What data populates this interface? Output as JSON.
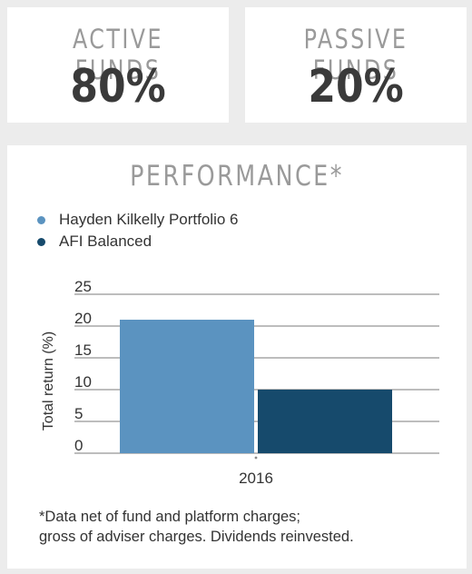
{
  "stats": {
    "active": {
      "label": "ACTIVE FUNDS",
      "value": "80%"
    },
    "passive": {
      "label": "PASSIVE FUNDS",
      "value": "20%"
    }
  },
  "performance": {
    "title": "PERFORMANCE*",
    "footnote_line1": "*Data net of fund and platform charges;",
    "footnote_line2": "gross of adviser charges. Dividends reinvested."
  },
  "chart_data": {
    "type": "bar",
    "categories": [
      "2016"
    ],
    "series": [
      {
        "name": "Hayden Kilkelly Portfolio 6",
        "values": [
          21
        ],
        "color": "#5b93c0"
      },
      {
        "name": "AFI Balanced",
        "values": [
          10
        ],
        "color": "#164a6c"
      }
    ],
    "xlabel": "",
    "ylabel": "Total return (%)",
    "ylim": [
      0,
      25
    ],
    "yticks": [
      0,
      5,
      10,
      15,
      20,
      25
    ],
    "grid": true,
    "legend": "top-left"
  }
}
